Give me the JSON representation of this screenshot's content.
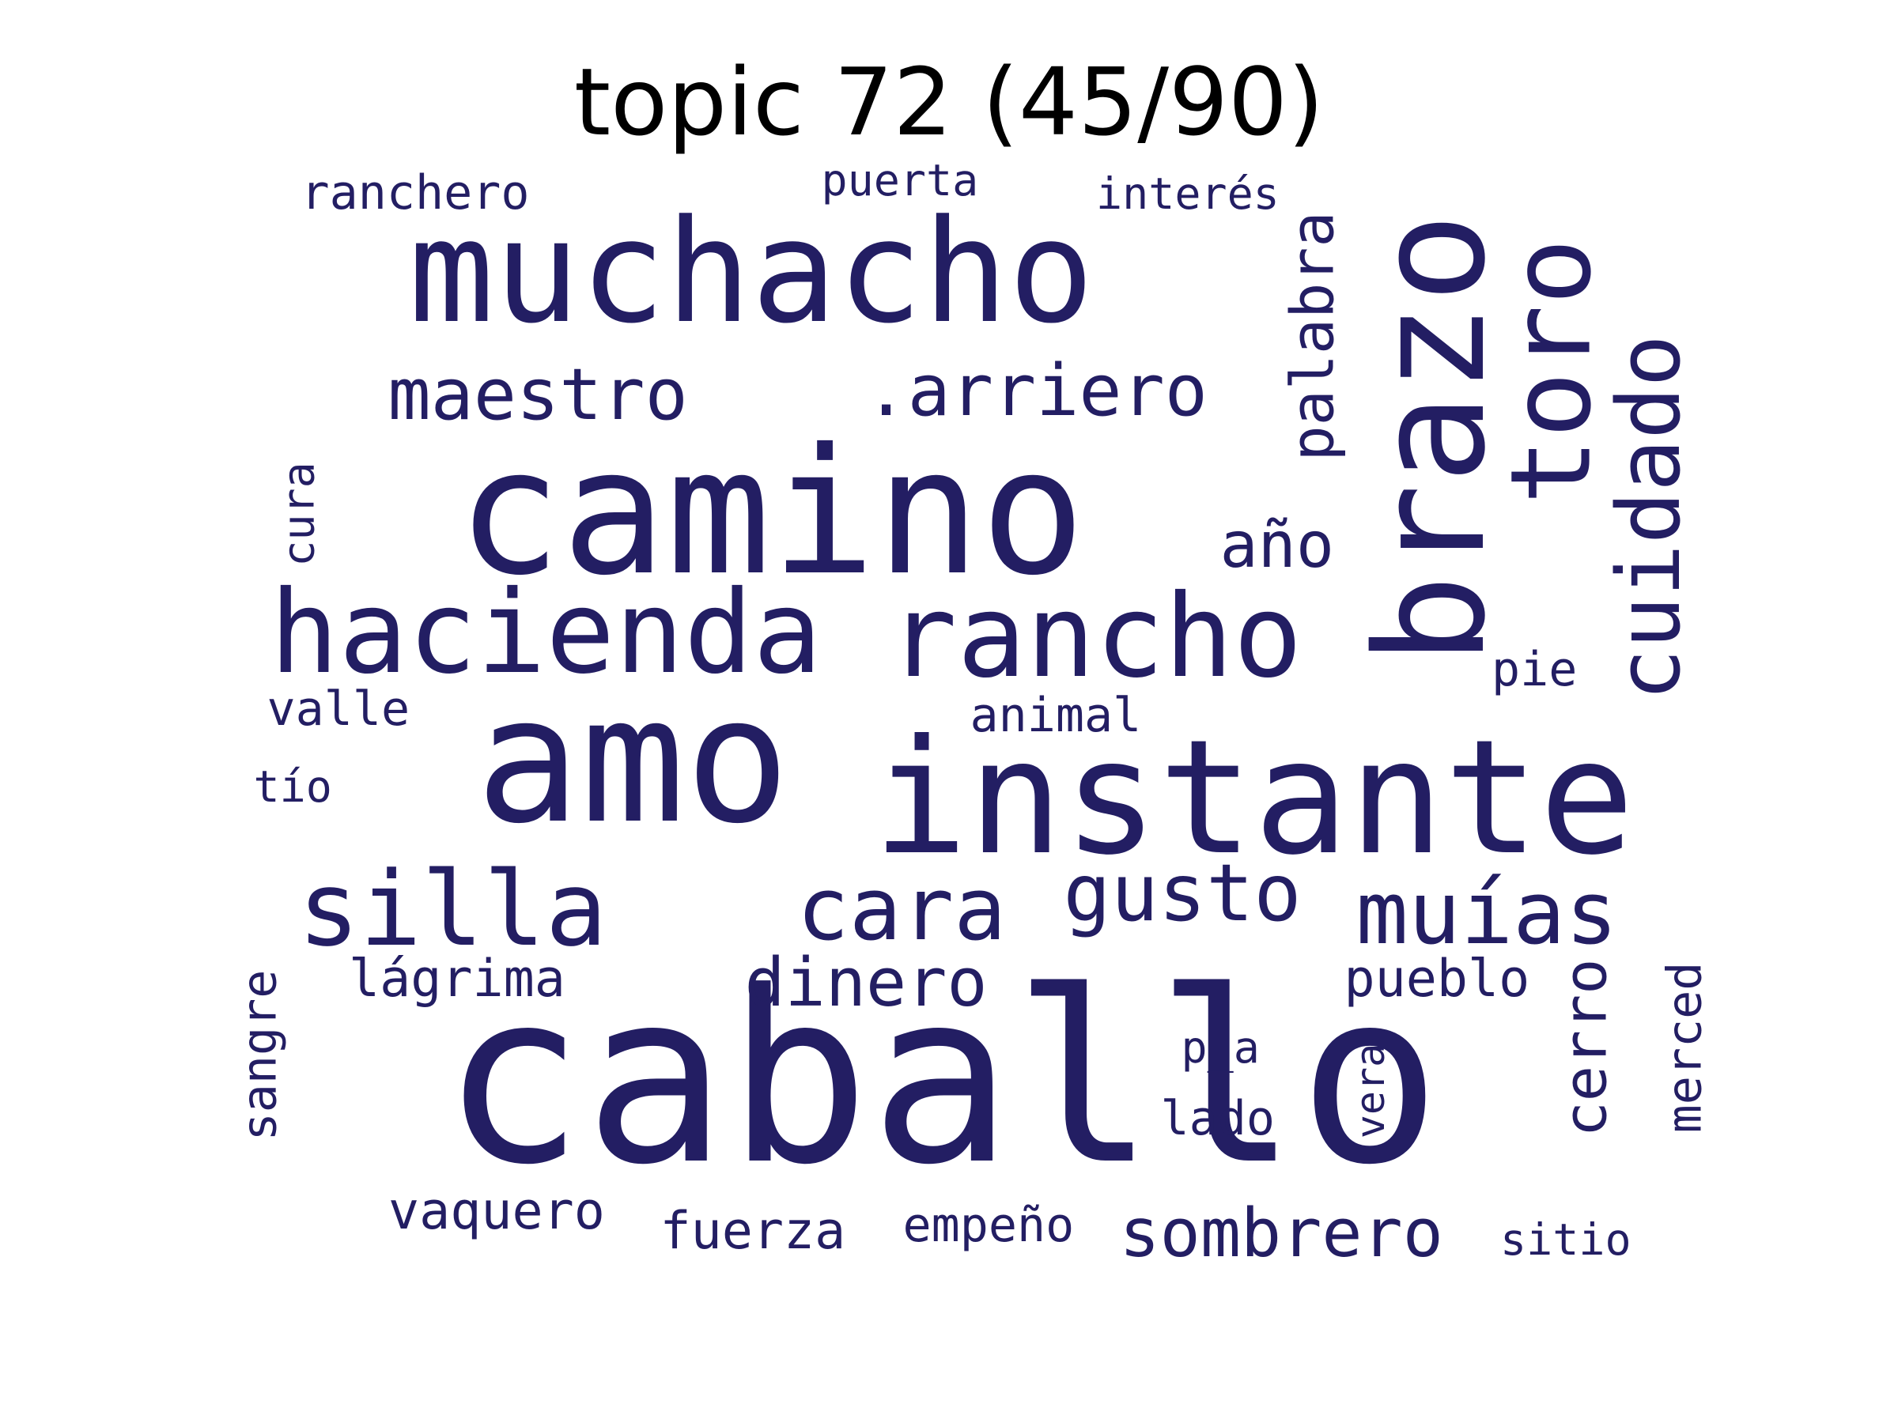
{
  "title": "topic 72 (45/90)",
  "colors": {
    "word": "#231e63",
    "title": "#000000",
    "background": "#ffffff"
  },
  "words": [
    {
      "text": "caballo",
      "weight": 1.0,
      "orientation": "horizontal"
    },
    {
      "text": "instante",
      "weight": 0.78,
      "orientation": "horizontal"
    },
    {
      "text": "amo",
      "weight": 0.78,
      "orientation": "horizontal"
    },
    {
      "text": "camino",
      "weight": 0.78,
      "orientation": "horizontal"
    },
    {
      "text": "muchacho",
      "weight": 0.62,
      "orientation": "horizontal"
    },
    {
      "text": "brazo",
      "weight": 0.62,
      "orientation": "vertical"
    },
    {
      "text": "rancho",
      "weight": 0.5,
      "orientation": "horizontal"
    },
    {
      "text": "hacienda",
      "weight": 0.46,
      "orientation": "horizontal"
    },
    {
      "text": "toro",
      "weight": 0.44,
      "orientation": "vertical"
    },
    {
      "text": "silla",
      "weight": 0.44,
      "orientation": "horizontal"
    },
    {
      "text": "cuidado",
      "weight": 0.36,
      "orientation": "vertical"
    },
    {
      "text": "cara",
      "weight": 0.36,
      "orientation": "horizontal"
    },
    {
      "text": "muías",
      "weight": 0.36,
      "orientation": "horizontal"
    },
    {
      "text": "gusto",
      "weight": 0.32,
      "orientation": "horizontal"
    },
    {
      "text": "maestro",
      "weight": 0.3,
      "orientation": "horizontal"
    },
    {
      "text": ".arriero",
      "weight": 0.3,
      "orientation": "horizontal"
    },
    {
      "text": "dinero",
      "weight": 0.3,
      "orientation": "horizontal"
    },
    {
      "text": "palabra",
      "weight": 0.28,
      "orientation": "vertical"
    },
    {
      "text": "año",
      "weight": 0.28,
      "orientation": "horizontal"
    },
    {
      "text": "sombrero",
      "weight": 0.28,
      "orientation": "horizontal"
    },
    {
      "text": "cerro",
      "weight": 0.26,
      "orientation": "vertical"
    },
    {
      "text": "pueblo",
      "weight": 0.24,
      "orientation": "horizontal"
    },
    {
      "text": "lágrima",
      "weight": 0.24,
      "orientation": "horizontal"
    },
    {
      "text": "vaquero",
      "weight": 0.24,
      "orientation": "horizontal"
    },
    {
      "text": "fuerza",
      "weight": 0.24,
      "orientation": "horizontal"
    },
    {
      "text": "merced",
      "weight": 0.22,
      "orientation": "vertical"
    },
    {
      "text": "sangre",
      "weight": 0.22,
      "orientation": "vertical"
    },
    {
      "text": "ranchero",
      "weight": 0.22,
      "orientation": "horizontal"
    },
    {
      "text": "empeño",
      "weight": 0.22,
      "orientation": "horizontal"
    },
    {
      "text": "valle",
      "weight": 0.22,
      "orientation": "horizontal"
    },
    {
      "text": "animal",
      "weight": 0.22,
      "orientation": "horizontal"
    },
    {
      "text": "pie",
      "weight": 0.22,
      "orientation": "horizontal"
    },
    {
      "text": "lado",
      "weight": 0.22,
      "orientation": "horizontal"
    },
    {
      "text": "p_a",
      "weight": 0.2,
      "orientation": "horizontal"
    },
    {
      "text": "cura",
      "weight": 0.2,
      "orientation": "vertical"
    },
    {
      "text": "puerta",
      "weight": 0.2,
      "orientation": "horizontal"
    },
    {
      "text": "interés",
      "weight": 0.2,
      "orientation": "horizontal"
    },
    {
      "text": "sitio",
      "weight": 0.2,
      "orientation": "horizontal"
    },
    {
      "text": "vera",
      "weight": 0.18,
      "orientation": "vertical"
    },
    {
      "text": "tío",
      "weight": 0.18,
      "orientation": "horizontal"
    }
  ]
}
